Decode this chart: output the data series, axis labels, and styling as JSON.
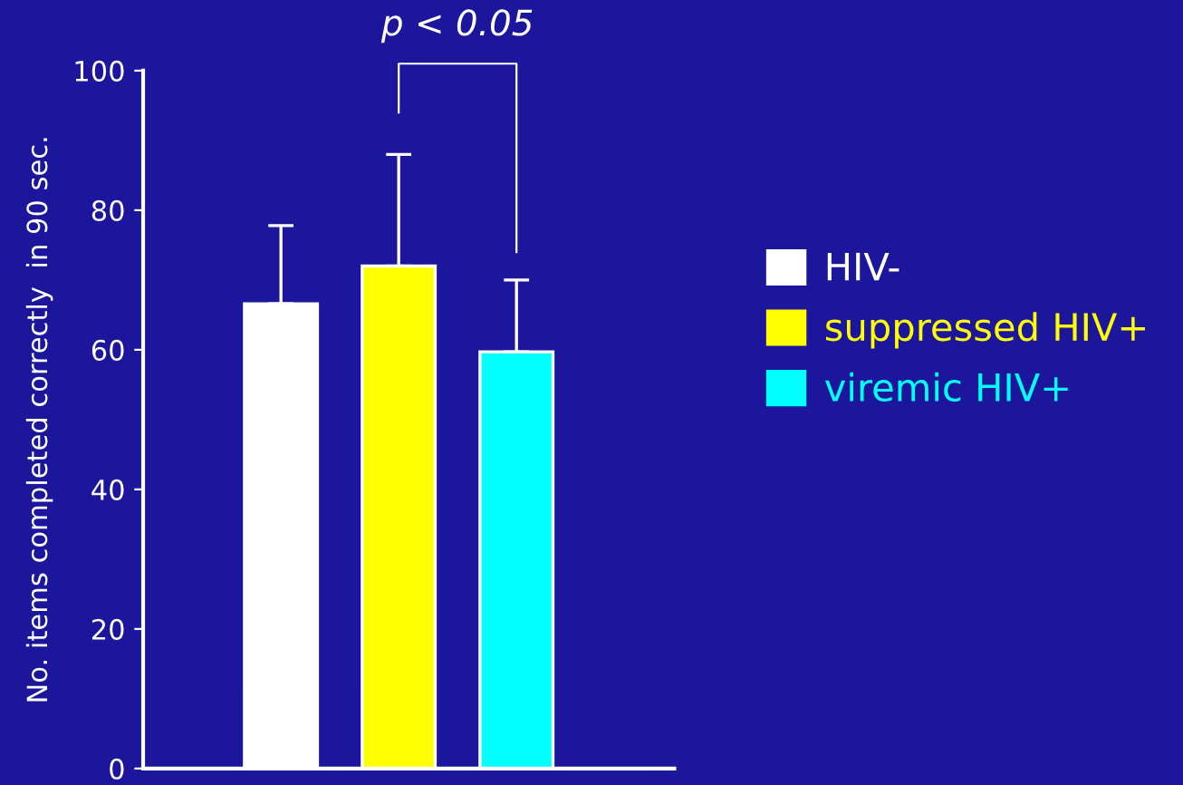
{
  "chart_data": {
    "type": "bar",
    "ylabel": "No. items completed correctly  in 90 sec.",
    "categories": [
      null,
      null,
      null
    ],
    "series": [
      {
        "name": "HIV-",
        "color": "#ffffff",
        "values": [
          66.6,
          null,
          null
        ],
        "errors": [
          [
            66.6,
            77.8
          ],
          null,
          null
        ]
      },
      {
        "name": "suppressed HIV+",
        "color": "#ffff00",
        "values": [
          null,
          72,
          null
        ],
        "errors": [
          null,
          [
            72,
            88
          ],
          null
        ]
      },
      {
        "name": "viremic HIV+",
        "color": "#00ffff",
        "values": [
          null,
          null,
          59.7
        ],
        "errors": [
          null,
          null,
          [
            59.7,
            70
          ]
        ]
      }
    ],
    "ylim": [
      0,
      100
    ],
    "yticks": [
      0,
      20,
      40,
      60,
      80,
      100
    ],
    "legend": "right",
    "grid": false,
    "annotations": [
      "p < 0.05"
    ]
  }
}
